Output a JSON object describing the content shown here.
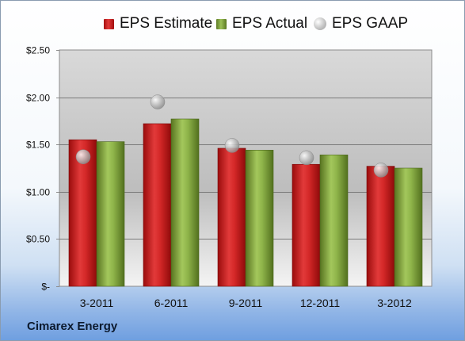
{
  "chart_data": {
    "type": "bar",
    "categories": [
      "3-2011",
      "6-2011",
      "9-2011",
      "12-2011",
      "3-2012"
    ],
    "series": [
      {
        "name": "EPS Estimate",
        "values": [
          1.55,
          1.72,
          1.46,
          1.29,
          1.27
        ],
        "color": "#c0171a"
      },
      {
        "name": "EPS Actual",
        "values": [
          1.53,
          1.77,
          1.44,
          1.39,
          1.25
        ],
        "color": "#7fa33c"
      },
      {
        "name": "EPS GAAP",
        "values": [
          1.37,
          1.95,
          1.49,
          1.36,
          1.23
        ],
        "color": "#b8b8b8",
        "style": "marker"
      }
    ],
    "yticks": [
      {
        "value": 0,
        "label": "$-"
      },
      {
        "value": 0.5,
        "label": "$0.50"
      },
      {
        "value": 1.0,
        "label": "$1.00"
      },
      {
        "value": 1.5,
        "label": "$1.50"
      },
      {
        "value": 2.0,
        "label": "$2.00"
      },
      {
        "value": 2.5,
        "label": "$2.50"
      }
    ],
    "ylim": [
      0,
      2.5
    ],
    "grid": true,
    "legend_position": "top-center",
    "footer": "Cimarex Energy"
  }
}
